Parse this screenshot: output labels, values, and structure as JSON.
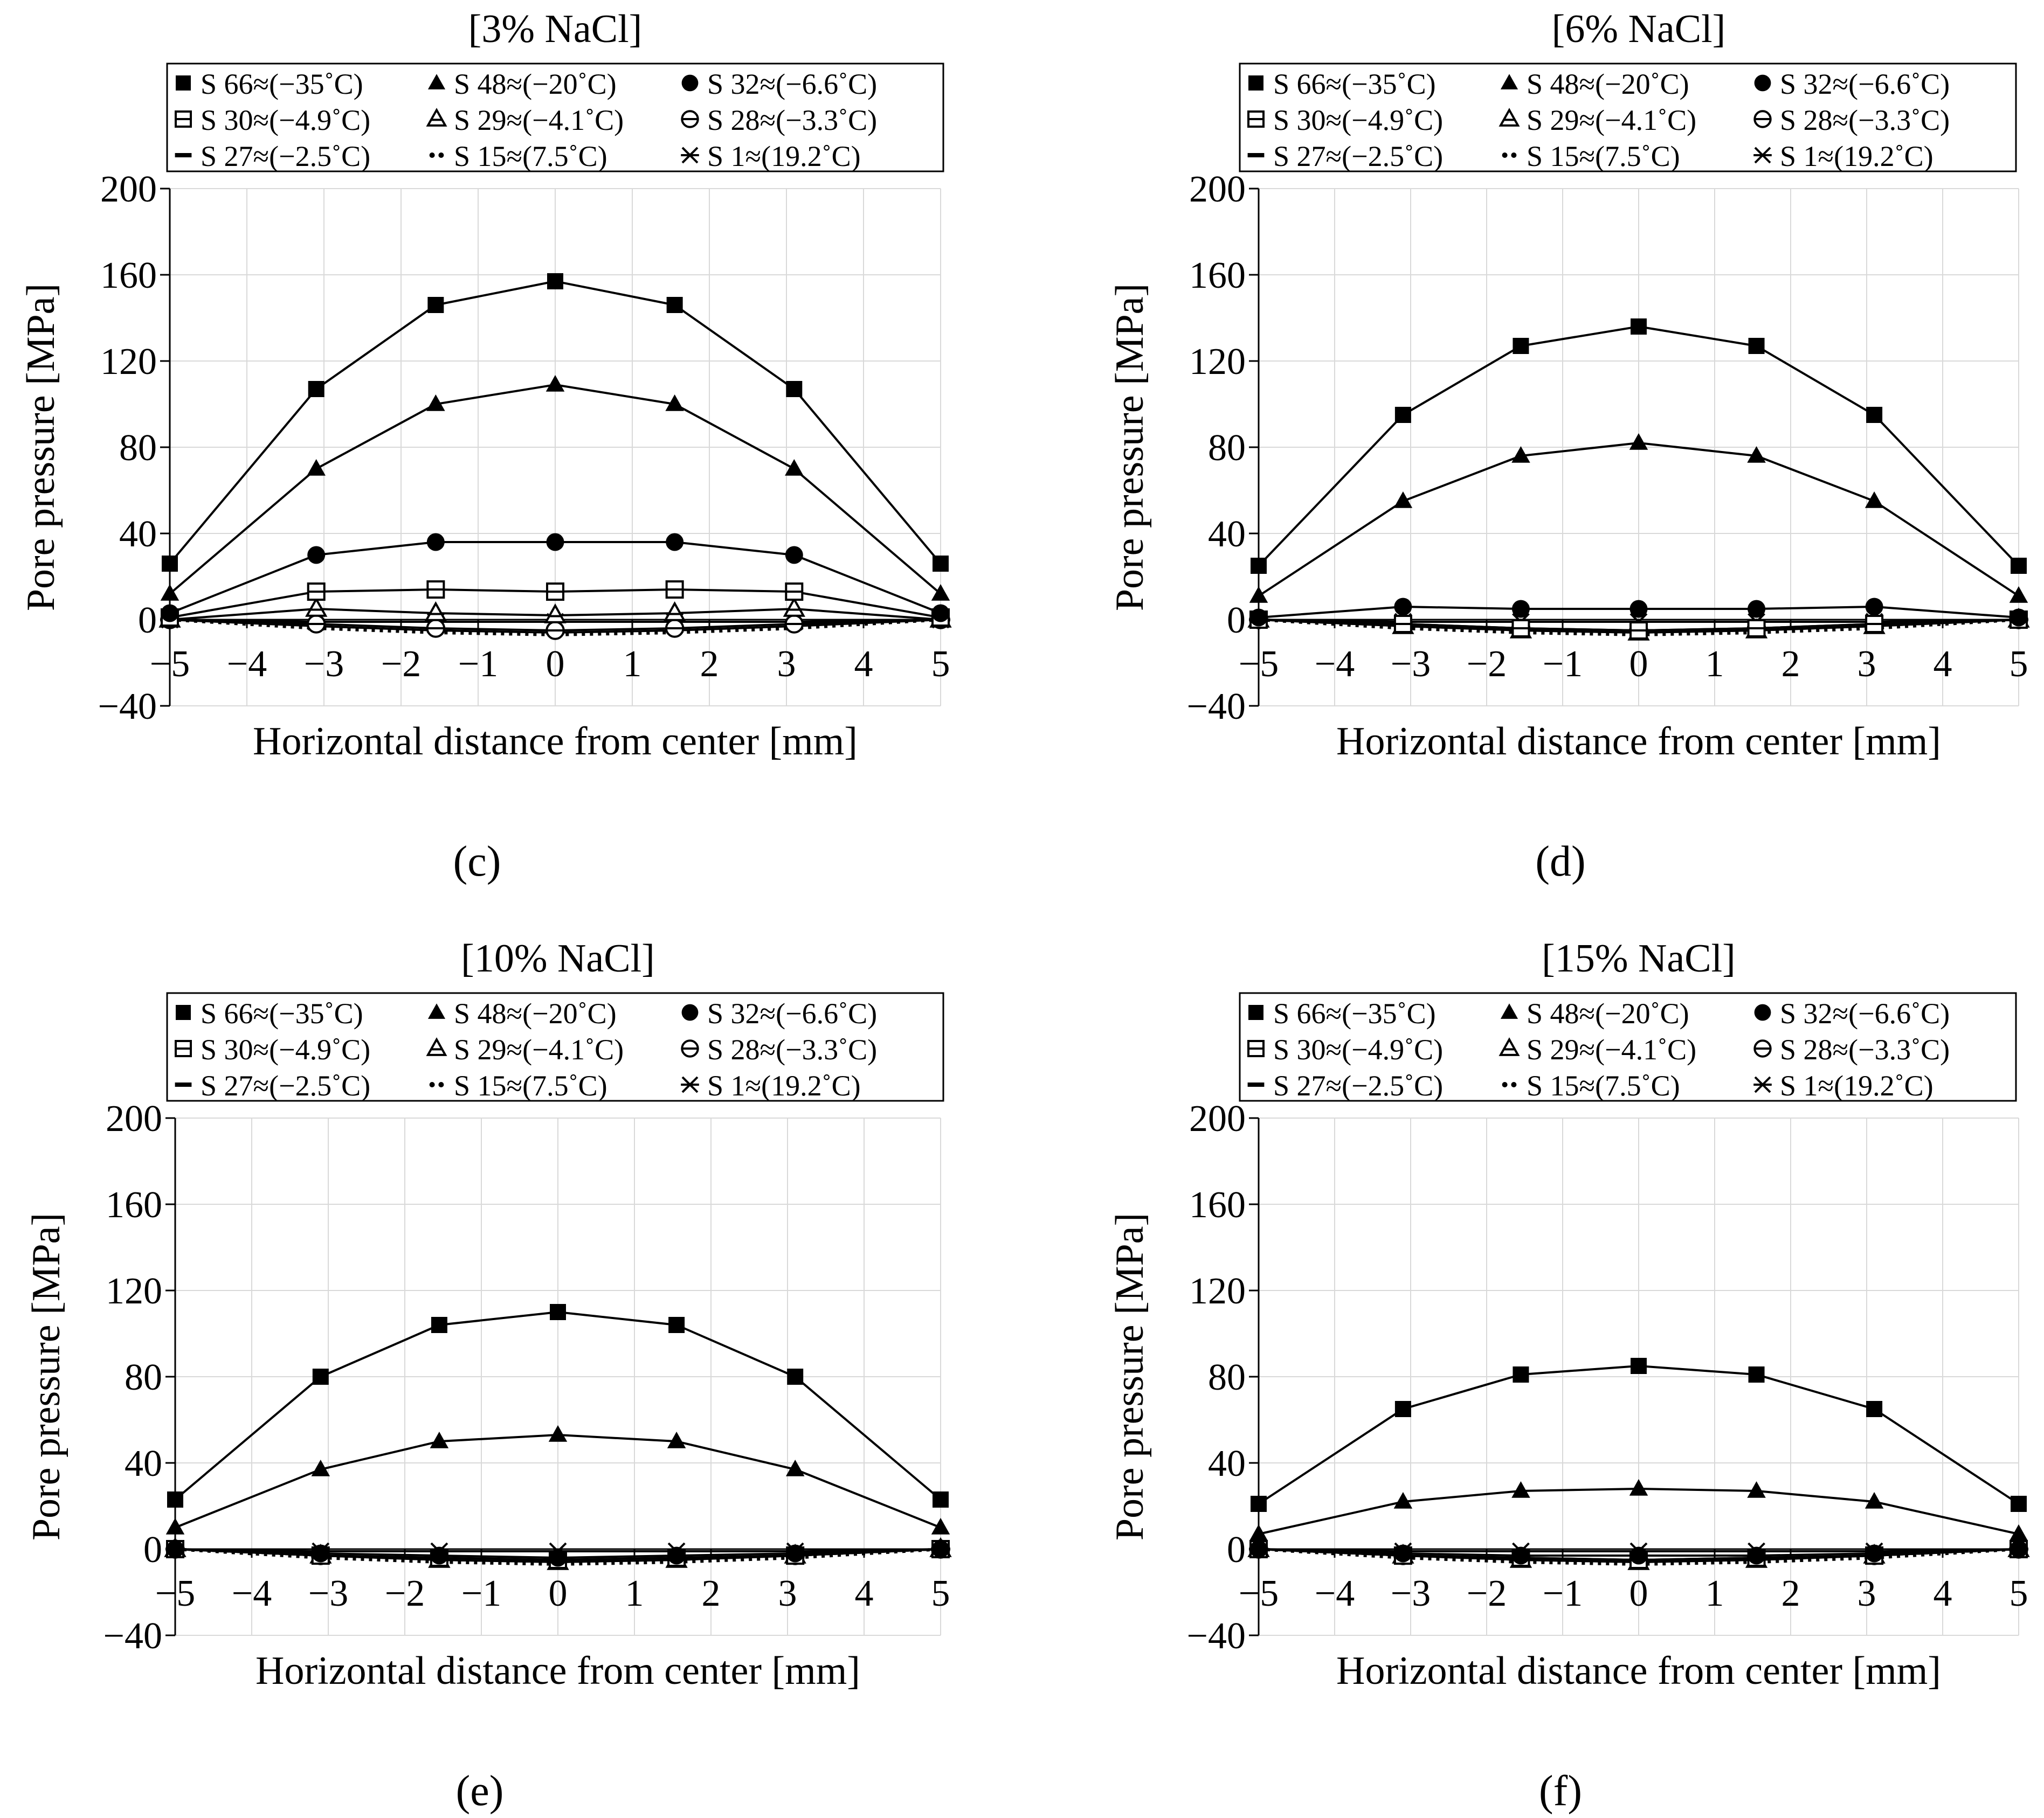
{
  "figure": {
    "legend": {
      "entries": [
        {
          "key": "S66",
          "label": "S 66≈(−35˚C)",
          "marker": "filled-square"
        },
        {
          "key": "S48",
          "label": "S 48≈(−20˚C)",
          "marker": "filled-triangle"
        },
        {
          "key": "S32",
          "label": "S 32≈(−6.6˚C)",
          "marker": "filled-circle"
        },
        {
          "key": "S30",
          "label": "S 30≈(−4.9˚C)",
          "marker": "open-square-dash"
        },
        {
          "key": "S29",
          "label": "S 29≈(−4.1˚C)",
          "marker": "open-triangle-dash"
        },
        {
          "key": "S28",
          "label": "S 28≈(−3.3˚C)",
          "marker": "open-circle-dash"
        },
        {
          "key": "S27",
          "label": "S 27≈(−2.5˚C)",
          "marker": "dash"
        },
        {
          "key": "S15",
          "label": "S 15≈(7.5˚C)",
          "marker": "dots"
        },
        {
          "key": "S1",
          "label": "S 1≈(19.2˚C)",
          "marker": "x-star"
        }
      ]
    }
  },
  "chart_data": [
    {
      "panel_label": "(c)",
      "type": "line",
      "title": "[3% NaCl]",
      "xlabel": "Horizontal distance from center [mm]",
      "ylabel": "Pore pressure [MPa]",
      "xlim": [
        -5,
        5
      ],
      "ylim": [
        -40,
        200
      ],
      "xticks": [
        -5,
        -4,
        -3,
        -2,
        -1,
        0,
        1,
        2,
        3,
        4,
        5
      ],
      "xtick_labels": [
        "−5",
        "−4",
        "−3",
        "−2",
        "−1",
        "0",
        "1",
        "2",
        "3",
        "4",
        "5"
      ],
      "yticks": [
        -40,
        0,
        40,
        80,
        120,
        160,
        200
      ],
      "ytick_labels": [
        "−40",
        "0",
        "40",
        "80",
        "120",
        "160",
        "200"
      ],
      "grid": true,
      "legend_position": "top",
      "x": [
        -5,
        -3.1,
        -1.55,
        0,
        1.55,
        3.1,
        5
      ],
      "series": [
        {
          "key": "S66",
          "name": "S 66≈(−35˚C)",
          "values": [
            26,
            107,
            146,
            157,
            146,
            107,
            26
          ]
        },
        {
          "key": "S48",
          "name": "S 48≈(−20˚C)",
          "values": [
            12,
            70,
            100,
            109,
            100,
            70,
            12
          ]
        },
        {
          "key": "S32",
          "name": "S 32≈(−6.6˚C)",
          "values": [
            3,
            30,
            36,
            36,
            36,
            30,
            3
          ]
        },
        {
          "key": "S30",
          "name": "S 30≈(−4.9˚C)",
          "values": [
            1,
            13,
            14,
            13,
            14,
            13,
            1
          ]
        },
        {
          "key": "S29",
          "name": "S 29≈(−4.1˚C)",
          "values": [
            0,
            5,
            3,
            2,
            3,
            5,
            0
          ]
        },
        {
          "key": "S28",
          "name": "S 28≈(−3.3˚C)",
          "values": [
            0,
            -2,
            -4,
            -5,
            -4,
            -2,
            0
          ]
        },
        {
          "key": "S27",
          "name": "S 27≈(−2.5˚C)",
          "values": [
            0,
            -3,
            -5,
            -6,
            -5,
            -3,
            0
          ]
        },
        {
          "key": "S15",
          "name": "S 15≈(7.5˚C)",
          "values": [
            0,
            -4,
            -6,
            -7,
            -6,
            -4,
            0
          ]
        },
        {
          "key": "S1",
          "name": "S 1≈(19.2˚C)",
          "values": [
            0,
            -1,
            -1,
            -1,
            -1,
            -1,
            0
          ]
        }
      ]
    },
    {
      "panel_label": "(d)",
      "type": "line",
      "title": "[6% NaCl]",
      "xlabel": "Horizontal distance from center [mm]",
      "ylabel": "Pore pressure [MPa]",
      "xlim": [
        -5,
        5
      ],
      "ylim": [
        -40,
        200
      ],
      "xticks": [
        -5,
        -4,
        -3,
        -2,
        -1,
        0,
        1,
        2,
        3,
        4,
        5
      ],
      "xtick_labels": [
        "−5",
        "−4",
        "−3",
        "−2",
        "−1",
        "0",
        "1",
        "2",
        "3",
        "4",
        "5"
      ],
      "yticks": [
        -40,
        0,
        40,
        80,
        120,
        160,
        200
      ],
      "ytick_labels": [
        "−40",
        "0",
        "40",
        "80",
        "120",
        "160",
        "200"
      ],
      "grid": true,
      "legend_position": "top",
      "x": [
        -5,
        -3.1,
        -1.55,
        0,
        1.55,
        3.1,
        5
      ],
      "series": [
        {
          "key": "S66",
          "name": "S 66≈(−35˚C)",
          "values": [
            25,
            95,
            127,
            136,
            127,
            95,
            25
          ]
        },
        {
          "key": "S48",
          "name": "S 48≈(−20˚C)",
          "values": [
            11,
            55,
            76,
            82,
            76,
            55,
            11
          ]
        },
        {
          "key": "S32",
          "name": "S 32≈(−6.6˚C)",
          "values": [
            1,
            6,
            5,
            5,
            5,
            6,
            1
          ]
        },
        {
          "key": "S30",
          "name": "S 30≈(−4.9˚C)",
          "values": [
            0,
            -2,
            -4,
            -5,
            -4,
            -2,
            0
          ]
        },
        {
          "key": "S29",
          "name": "S 29≈(−4.1˚C)",
          "values": [
            0,
            -3,
            -5,
            -6,
            -5,
            -3,
            0
          ]
        },
        {
          "key": "S28",
          "name": "S 28≈(−3.3˚C)",
          "values": [
            0,
            -2,
            -4,
            -5,
            -4,
            -2,
            0
          ]
        },
        {
          "key": "S27",
          "name": "S 27≈(−2.5˚C)",
          "values": [
            0,
            -3,
            -5,
            -6,
            -5,
            -3,
            0
          ]
        },
        {
          "key": "S15",
          "name": "S 15≈(7.5˚C)",
          "values": [
            0,
            -4,
            -6,
            -7,
            -6,
            -4,
            0
          ]
        },
        {
          "key": "S1",
          "name": "S 1≈(19.2˚C)",
          "values": [
            0,
            -1,
            -1,
            -1,
            -1,
            -1,
            0
          ]
        }
      ]
    },
    {
      "panel_label": "(e)",
      "type": "line",
      "title": "[10% NaCl]",
      "xlabel": "Horizontal distance from center [mm]",
      "ylabel": "Pore pressure [MPa]",
      "xlim": [
        -5,
        5
      ],
      "ylim": [
        -40,
        200
      ],
      "xticks": [
        -5,
        -4,
        -3,
        -2,
        -1,
        0,
        1,
        2,
        3,
        4,
        5
      ],
      "xtick_labels": [
        "−5",
        "−4",
        "−3",
        "−2",
        "−1",
        "0",
        "1",
        "2",
        "3",
        "4",
        "5"
      ],
      "yticks": [
        -40,
        0,
        40,
        80,
        120,
        160,
        200
      ],
      "ytick_labels": [
        "−40",
        "0",
        "40",
        "80",
        "120",
        "160",
        "200"
      ],
      "grid": true,
      "legend_position": "top",
      "x": [
        -5,
        -3.1,
        -1.55,
        0,
        1.55,
        3.1,
        5
      ],
      "series": [
        {
          "key": "S66",
          "name": "S 66≈(−35˚C)",
          "values": [
            23,
            80,
            104,
            110,
            104,
            80,
            23
          ]
        },
        {
          "key": "S48",
          "name": "S 48≈(−20˚C)",
          "values": [
            10,
            37,
            50,
            53,
            50,
            37,
            10
          ]
        },
        {
          "key": "S32",
          "name": "S 32≈(−6.6˚C)",
          "values": [
            0,
            -2,
            -3,
            -4,
            -3,
            -2,
            0
          ]
        },
        {
          "key": "S30",
          "name": "S 30≈(−4.9˚C)",
          "values": [
            0,
            -3,
            -4,
            -5,
            -4,
            -3,
            0
          ]
        },
        {
          "key": "S29",
          "name": "S 29≈(−4.1˚C)",
          "values": [
            0,
            -3,
            -5,
            -6,
            -5,
            -3,
            0
          ]
        },
        {
          "key": "S28",
          "name": "S 28≈(−3.3˚C)",
          "values": [
            0,
            -3,
            -4,
            -5,
            -4,
            -3,
            0
          ]
        },
        {
          "key": "S27",
          "name": "S 27≈(−2.5˚C)",
          "values": [
            0,
            -3,
            -5,
            -6,
            -5,
            -3,
            0
          ]
        },
        {
          "key": "S15",
          "name": "S 15≈(7.5˚C)",
          "values": [
            0,
            -4,
            -6,
            -7,
            -6,
            -4,
            0
          ]
        },
        {
          "key": "S1",
          "name": "S 1≈(19.2˚C)",
          "values": [
            0,
            -1,
            -1,
            -1,
            -1,
            -1,
            0
          ]
        }
      ]
    },
    {
      "panel_label": "(f)",
      "type": "line",
      "title": "[15% NaCl]",
      "xlabel": "Horizontal distance from center [mm]",
      "ylabel": "Pore pressure [MPa]",
      "xlim": [
        -5,
        5
      ],
      "ylim": [
        -40,
        200
      ],
      "xticks": [
        -5,
        -4,
        -3,
        -2,
        -1,
        0,
        1,
        2,
        3,
        4,
        5
      ],
      "xtick_labels": [
        "−5",
        "−4",
        "−3",
        "−2",
        "−1",
        "0",
        "1",
        "2",
        "3",
        "4",
        "5"
      ],
      "yticks": [
        -40,
        0,
        40,
        80,
        120,
        160,
        200
      ],
      "ytick_labels": [
        "−40",
        "0",
        "40",
        "80",
        "120",
        "160",
        "200"
      ],
      "grid": true,
      "legend_position": "top",
      "x": [
        -5,
        -3.1,
        -1.55,
        0,
        1.55,
        3.1,
        5
      ],
      "series": [
        {
          "key": "S66",
          "name": "S 66≈(−35˚C)",
          "values": [
            21,
            65,
            81,
            85,
            81,
            65,
            21
          ]
        },
        {
          "key": "S48",
          "name": "S 48≈(−20˚C)",
          "values": [
            7,
            22,
            27,
            28,
            27,
            22,
            7
          ]
        },
        {
          "key": "S32",
          "name": "S 32≈(−6.6˚C)",
          "values": [
            0,
            -2,
            -3,
            -3,
            -3,
            -2,
            0
          ]
        },
        {
          "key": "S30",
          "name": "S 30≈(−4.9˚C)",
          "values": [
            0,
            -3,
            -4,
            -5,
            -4,
            -3,
            0
          ]
        },
        {
          "key": "S29",
          "name": "S 29≈(−4.1˚C)",
          "values": [
            0,
            -3,
            -5,
            -6,
            -5,
            -3,
            0
          ]
        },
        {
          "key": "S28",
          "name": "S 28≈(−3.3˚C)",
          "values": [
            0,
            -3,
            -4,
            -5,
            -4,
            -3,
            0
          ]
        },
        {
          "key": "S27",
          "name": "S 27≈(−2.5˚C)",
          "values": [
            0,
            -3,
            -5,
            -6,
            -5,
            -3,
            0
          ]
        },
        {
          "key": "S15",
          "name": "S 15≈(7.5˚C)",
          "values": [
            0,
            -4,
            -6,
            -7,
            -6,
            -4,
            0
          ]
        },
        {
          "key": "S1",
          "name": "S 1≈(19.2˚C)",
          "values": [
            0,
            -1,
            -1,
            -1,
            -1,
            -1,
            0
          ]
        }
      ]
    }
  ]
}
